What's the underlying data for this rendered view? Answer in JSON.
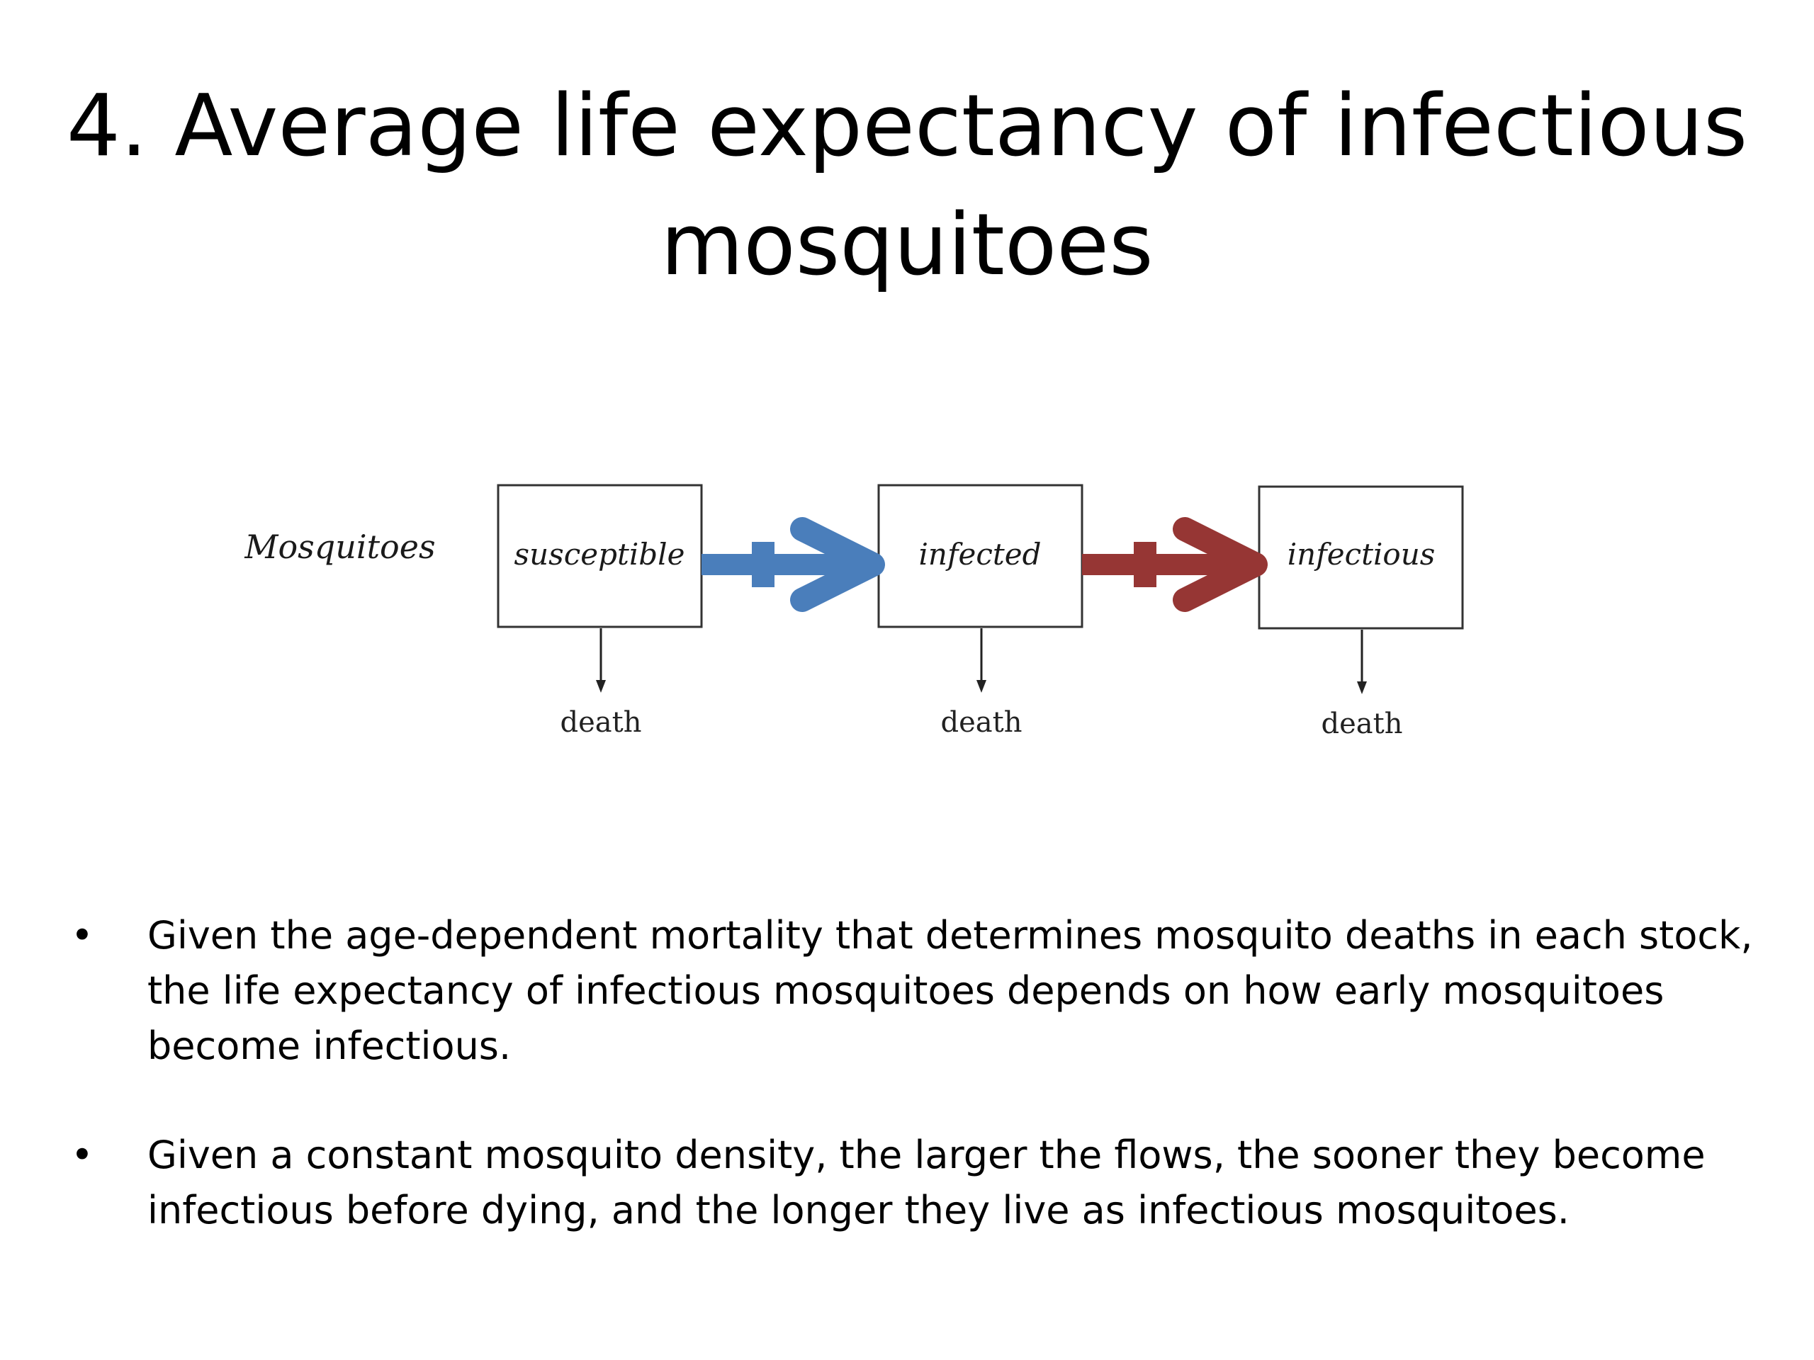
{
  "slide": {
    "title": "4. Average life expectancy of infectious mosquitoes"
  },
  "diagram": {
    "row_label": "Mosquitoes",
    "boxes": [
      {
        "label": "susceptible",
        "outflow": "death"
      },
      {
        "label": "infected",
        "outflow": "death"
      },
      {
        "label": "infectious",
        "outflow": "death"
      }
    ],
    "flows": [
      {
        "from": "susceptible",
        "to": "infected",
        "color": "#4A7EBB"
      },
      {
        "from": "infected",
        "to": "infectious",
        "color": "#963634"
      }
    ]
  },
  "bullets": [
    {
      "marker": "•",
      "text": "Given the age-dependent mortality that determines mosquito deaths in each stock, the life expectancy of infectious mosquitoes depends on how early mosquitoes become infectious."
    },
    {
      "marker": "•",
      "text": "Given a constant mosquito density, the larger the flows, the sooner they become infectious before dying, and the longer they live as infectious mosquitoes."
    }
  ]
}
